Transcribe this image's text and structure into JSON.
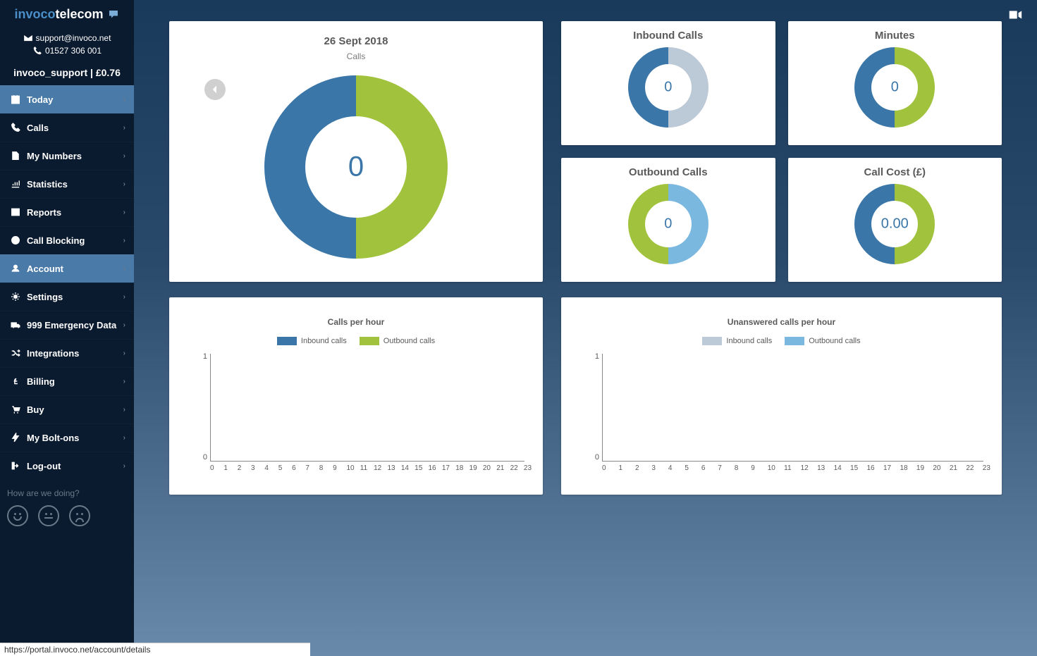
{
  "brand": {
    "part1": "invoco",
    "part2": "telecom"
  },
  "contact": {
    "email": "support@invoco.net",
    "phone": "01527 306 001"
  },
  "user": {
    "name": "invoco_support",
    "balance": "£0.76"
  },
  "nav": [
    {
      "label": "Today",
      "icon": "calendar",
      "state": "active"
    },
    {
      "label": "Calls",
      "icon": "phone"
    },
    {
      "label": "My Numbers",
      "icon": "file"
    },
    {
      "label": "Statistics",
      "icon": "chart"
    },
    {
      "label": "Reports",
      "icon": "table"
    },
    {
      "label": "Call Blocking",
      "icon": "ban"
    },
    {
      "label": "Account",
      "icon": "user",
      "state": "active"
    },
    {
      "label": "Settings",
      "icon": "cogs"
    },
    {
      "label": "999 Emergency Data",
      "icon": "truck"
    },
    {
      "label": "Integrations",
      "icon": "random"
    },
    {
      "label": "Billing",
      "icon": "pound"
    },
    {
      "label": "Buy",
      "icon": "cart"
    },
    {
      "label": "My Bolt-ons",
      "icon": "bolt"
    },
    {
      "label": "Log-out",
      "icon": "signout"
    }
  ],
  "feedback_label": "How are we doing?",
  "main_donut": {
    "title": "26 Sept 2018",
    "subtitle": "Calls",
    "value": "0",
    "segments": [
      {
        "color": "#a0c23c",
        "fraction": 0.5
      },
      {
        "color": "#3a76a8",
        "fraction": 0.5
      }
    ],
    "size": 260,
    "thickness": 58
  },
  "small_donuts": [
    {
      "title": "Inbound Calls",
      "value": "0",
      "segments": [
        {
          "color": "#bcc9d6",
          "fraction": 0.5
        },
        {
          "color": "#3a76a8",
          "fraction": 0.5
        }
      ],
      "size": 114,
      "thickness": 24
    },
    {
      "title": "Minutes",
      "value": "0",
      "segments": [
        {
          "color": "#a0c23c",
          "fraction": 0.5
        },
        {
          "color": "#3a76a8",
          "fraction": 0.5
        }
      ],
      "size": 114,
      "thickness": 24
    },
    {
      "title": "Outbound Calls",
      "value": "0",
      "segments": [
        {
          "color": "#7ab8e0",
          "fraction": 0.5
        },
        {
          "color": "#a0c23c",
          "fraction": 0.5
        }
      ],
      "size": 114,
      "thickness": 24
    },
    {
      "title": "Call Cost (£)",
      "value": "0.00",
      "segments": [
        {
          "color": "#a0c23c",
          "fraction": 0.5
        },
        {
          "color": "#3a76a8",
          "fraction": 0.5
        }
      ],
      "size": 114,
      "thickness": 24
    }
  ],
  "bar_charts": [
    {
      "title": "Calls per hour",
      "legend": [
        {
          "label": "Inbound calls",
          "color": "#3a76a8"
        },
        {
          "label": "Outbound calls",
          "color": "#a0c23c"
        }
      ],
      "y_ticks": [
        "1",
        "0"
      ],
      "x_ticks": [
        "0",
        "1",
        "2",
        "3",
        "4",
        "5",
        "6",
        "7",
        "8",
        "9",
        "10",
        "11",
        "12",
        "13",
        "14",
        "15",
        "16",
        "17",
        "18",
        "19",
        "20",
        "21",
        "22",
        "23"
      ]
    },
    {
      "title": "Unanswered calls per hour",
      "legend": [
        {
          "label": "Inbound calls",
          "color": "#bcc9d6"
        },
        {
          "label": "Outbound calls",
          "color": "#7ab8e0"
        }
      ],
      "y_ticks": [
        "1",
        "0"
      ],
      "x_ticks": [
        "0",
        "1",
        "2",
        "3",
        "4",
        "5",
        "6",
        "7",
        "8",
        "9",
        "10",
        "11",
        "12",
        "13",
        "14",
        "15",
        "16",
        "17",
        "18",
        "19",
        "20",
        "21",
        "22",
        "23"
      ]
    }
  ],
  "status_url": "https://portal.invoco.net/account/details",
  "colors": {
    "sidebar_bg": "#0a1a2f",
    "sidebar_active": "#4a7aa8",
    "card_bg": "#ffffff",
    "text_muted": "#5a5a5a",
    "accent_blue": "#3a76a8"
  }
}
